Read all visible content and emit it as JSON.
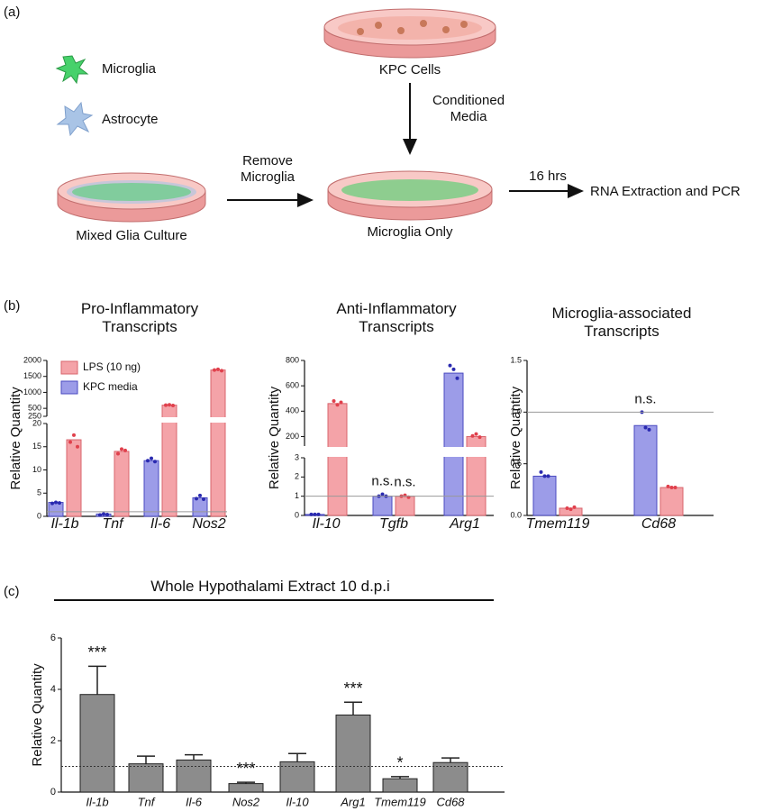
{
  "panels": [
    "(a)",
    "(b)",
    "(c)"
  ],
  "diagram": {
    "legend": [
      "Microglia",
      "Astrocyte"
    ],
    "dishes": [
      "KPC Cells",
      "Mixed Glia Culture",
      "Microglia Only"
    ],
    "arrows": [
      "Conditioned Media",
      "Remove Microglia",
      "16 hrs"
    ],
    "output": "RNA Extraction and PCR"
  },
  "chart_data": [
    {
      "type": "bar",
      "title": "Pro-Inflammatory Transcripts",
      "ylabel": "Relative Quantity",
      "categories": [
        "Il-1b",
        "Tnf",
        "Il-6",
        "Nos2"
      ],
      "series": [
        {
          "name": "LPS (10 ng)",
          "color": "#f4a3a8",
          "edge_color": "#d9646c",
          "point_color": "#e0404c",
          "values": [
            16.5,
            14,
            600,
            1700
          ],
          "points": [
            [
              16,
              17.5,
              15
            ],
            [
              13.5,
              14.5,
              14.2
            ],
            [
              600,
              610,
              590
            ],
            [
              1700,
              1720,
              1680
            ]
          ]
        },
        {
          "name": "KPC media",
          "color": "#9c9ce8",
          "edge_color": "#4a4ac0",
          "point_color": "#2a2ab0",
          "values": [
            3,
            0.5,
            12,
            4
          ],
          "points": [
            [
              2.8,
              3,
              2.9
            ],
            [
              0.3,
              0.5,
              0.4
            ],
            [
              12,
              12.5,
              11.8
            ],
            [
              3.8,
              4.5,
              3.7
            ]
          ]
        }
      ],
      "axis_segments": [
        {
          "ylim": [
            0,
            20
          ],
          "yticks": [
            0,
            5,
            10,
            15,
            20
          ]
        },
        {
          "ylim": [
            250,
            2000
          ],
          "yticks": [
            250,
            500,
            1000,
            1500,
            2000
          ]
        }
      ],
      "reference_line": 1,
      "legend": "upper-left"
    },
    {
      "type": "bar",
      "title": "Anti-Inflammatory Transcripts",
      "ylabel": "Relative Quantity",
      "categories": [
        "Il-10",
        "Tgfb",
        "Arg1"
      ],
      "series": [
        {
          "name": "LPS (10 ng)",
          "color": "#f4a3a8",
          "edge_color": "#d9646c",
          "point_color": "#e0404c",
          "values": [
            460,
            1,
            200
          ],
          "points": [
            [
              480,
              450,
              470
            ],
            [
              1.0,
              1.05,
              0.95
            ],
            [
              205,
              220,
              195
            ]
          ],
          "labels": [
            null,
            "n.s.",
            null
          ]
        },
        {
          "name": "KPC media",
          "color": "#9c9ce8",
          "edge_color": "#4a4ac0",
          "point_color": "#2a2ab0",
          "values": [
            0.05,
            1,
            700
          ],
          "points": [
            [
              0.05,
              0.05,
              0.05
            ],
            [
              1.0,
              1.1,
              1.0
            ],
            [
              760,
              730,
              660
            ]
          ],
          "labels": [
            null,
            "n.s.",
            null
          ]
        }
      ],
      "axis_segments": [
        {
          "ylim": [
            0,
            3
          ],
          "yticks": [
            0,
            1,
            2,
            3
          ]
        },
        {
          "ylim": [
            125,
            800
          ],
          "yticks": [
            200,
            400,
            600,
            800
          ]
        }
      ],
      "reference_line": 1
    },
    {
      "type": "bar",
      "title": "Microglia-associated Transcripts",
      "ylabel": "Relative Quantity",
      "categories": [
        "Tmem119",
        "Cd68"
      ],
      "series": [
        {
          "name": "LPS (10 ng)",
          "color": "#f4a3a8",
          "edge_color": "#d9646c",
          "point_color": "#e0404c",
          "values": [
            0.07,
            0.27
          ],
          "points": [
            [
              0.07,
              0.06,
              0.08
            ],
            [
              0.28,
              0.27,
              0.27
            ]
          ],
          "labels": [
            null,
            null
          ]
        },
        {
          "name": "KPC media",
          "color": "#9c9ce8",
          "edge_color": "#4a4ac0",
          "point_color": "#2a2ab0",
          "values": [
            0.38,
            0.87
          ],
          "points": [
            [
              0.42,
              0.38,
              0.38
            ],
            [
              1.0,
              0.85,
              0.83
            ]
          ],
          "labels": [
            null,
            "n.s."
          ]
        }
      ],
      "ylim": [
        0,
        1.5
      ],
      "yticks": [
        {
          "value": 0,
          "label": "0.0"
        },
        0.5,
        {
          "value": 1,
          "label": "1.0"
        },
        1.5
      ],
      "reference_line": 1
    },
    {
      "type": "errorbar",
      "title": "Whole Hypothalami Extract 10 d.p.i",
      "ylabel": "Relative Quantity",
      "categories": [
        "Il-1b",
        "Tnf",
        "Il-6",
        "Nos2",
        "Il-10",
        "Arg1",
        "Tmem119",
        "Cd68"
      ],
      "values": [
        3.8,
        1.1,
        1.25,
        0.33,
        1.18,
        3.0,
        0.52,
        1.15
      ],
      "errors": [
        1.1,
        0.3,
        0.2,
        0.05,
        0.32,
        0.5,
        0.08,
        0.18
      ],
      "annotations": [
        "***",
        null,
        null,
        "***",
        null,
        "***",
        "*",
        null
      ],
      "color": "#8c8c8c",
      "ylim": [
        0,
        6
      ],
      "yticks": [
        0,
        2,
        4,
        6
      ],
      "reference_line": 1
    }
  ]
}
